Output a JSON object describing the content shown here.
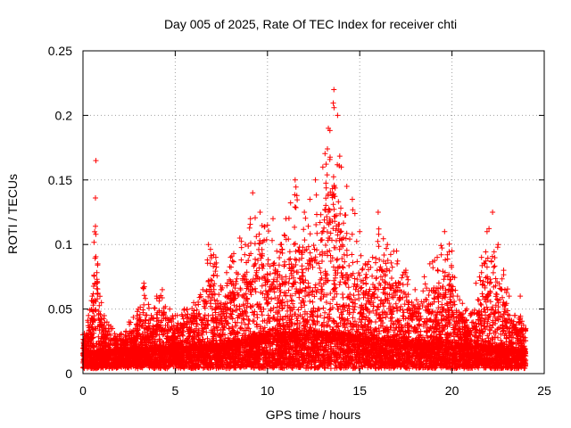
{
  "chart_data": {
    "type": "scatter",
    "title": "Day 005 of 2025, Rate Of TEC Index for receiver chti",
    "xlabel": "GPS time / hours",
    "ylabel": "ROTI / TECUs",
    "xlim": [
      0,
      25
    ],
    "ylim": [
      0,
      0.25
    ],
    "xticks": [
      "0",
      "5",
      "10",
      "15",
      "20",
      "25"
    ],
    "yticks": [
      "0",
      "0.05",
      "0.1",
      "0.15",
      "0.2",
      "0.25"
    ],
    "grid": true,
    "marker": "+",
    "marker_color": "#ff0000",
    "envelope": {
      "x": [
        0.0,
        0.3,
        0.5,
        0.7,
        0.8,
        1.0,
        1.3,
        1.6,
        2.0,
        2.5,
        3.0,
        3.3,
        3.7,
        4.0,
        4.3,
        4.7,
        5.0,
        5.5,
        6.0,
        6.5,
        6.8,
        7.2,
        7.5,
        8.0,
        8.5,
        8.8,
        9.2,
        9.6,
        10.0,
        10.3,
        10.7,
        11.0,
        11.5,
        12.0,
        12.3,
        12.6,
        13.0,
        13.3,
        13.6,
        13.8,
        14.0,
        14.3,
        14.6,
        15.0,
        15.3,
        15.7,
        16.0,
        16.5,
        17.0,
        17.5,
        18.0,
        18.5,
        18.8,
        19.2,
        19.6,
        20.0,
        20.3,
        20.8,
        21.0,
        21.3,
        21.6,
        21.9,
        22.2,
        22.5,
        22.8,
        23.1,
        23.4,
        23.7,
        24.0
      ],
      "y": [
        0.03,
        0.045,
        0.06,
        0.165,
        0.085,
        0.055,
        0.04,
        0.035,
        0.03,
        0.04,
        0.05,
        0.07,
        0.045,
        0.06,
        0.065,
        0.05,
        0.045,
        0.05,
        0.055,
        0.065,
        0.1,
        0.09,
        0.065,
        0.09,
        0.105,
        0.1,
        0.14,
        0.125,
        0.115,
        0.12,
        0.1,
        0.12,
        0.15,
        0.125,
        0.135,
        0.15,
        0.16,
        0.19,
        0.22,
        0.2,
        0.16,
        0.145,
        0.135,
        0.11,
        0.085,
        0.09,
        0.125,
        0.1,
        0.095,
        0.08,
        0.065,
        0.075,
        0.085,
        0.09,
        0.11,
        0.095,
        0.06,
        0.05,
        0.045,
        0.07,
        0.09,
        0.11,
        0.125,
        0.1,
        0.08,
        0.06,
        0.045,
        0.06,
        0.035
      ]
    },
    "baseline": {
      "x": [
        0,
        2,
        4,
        6,
        8,
        10,
        12,
        14,
        16,
        18,
        20,
        22,
        24
      ],
      "y": [
        0.015,
        0.015,
        0.017,
        0.018,
        0.02,
        0.025,
        0.027,
        0.026,
        0.022,
        0.02,
        0.02,
        0.018,
        0.015
      ]
    },
    "n_points": 9000
  }
}
